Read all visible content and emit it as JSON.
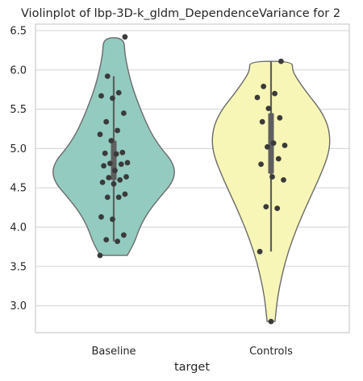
{
  "chart_data": {
    "type": "violin",
    "title": "Violinplot of lbp-3D-k_gldm_DependenceVariance for 2",
    "xlabel": "target",
    "ylabel": "",
    "categories": [
      "Baseline",
      "Controls"
    ],
    "ylim": [
      2.65,
      6.65
    ],
    "yticks": [
      3.0,
      3.5,
      4.0,
      4.5,
      5.0,
      5.5,
      6.0,
      6.5
    ],
    "ytick_labels": [
      "3.0",
      "3.5",
      "4.0",
      "4.5",
      "5.0",
      "5.5",
      "6.0",
      "6.5"
    ],
    "grid": true,
    "series": [
      {
        "colors": {
          "fill": "#93cbc0",
          "edge": "#6b6b6b"
        },
        "min": 3.64,
        "max": 6.41,
        "q1": 4.6,
        "median": 4.87,
        "q3": 5.1,
        "whisker_low": 3.82,
        "whisker_high": 5.92,
        "profile": [
          [
            3.64,
            0.17
          ],
          [
            3.8,
            0.26
          ],
          [
            4.0,
            0.33
          ],
          [
            4.2,
            0.44
          ],
          [
            4.4,
            0.6
          ],
          [
            4.55,
            0.73
          ],
          [
            4.7,
            0.78
          ],
          [
            4.85,
            0.73
          ],
          [
            5.0,
            0.6
          ],
          [
            5.2,
            0.47
          ],
          [
            5.4,
            0.38
          ],
          [
            5.6,
            0.3
          ],
          [
            5.8,
            0.23
          ],
          [
            6.0,
            0.18
          ],
          [
            6.2,
            0.14
          ],
          [
            6.41,
            0.13
          ]
        ],
        "points": [
          3.64,
          3.82,
          3.84,
          3.9,
          4.1,
          4.13,
          4.38,
          4.38,
          4.42,
          4.55,
          4.57,
          4.6,
          4.63,
          4.64,
          4.72,
          4.78,
          4.8,
          4.81,
          4.82,
          4.93,
          4.94,
          4.95,
          5.1,
          5.18,
          5.23,
          5.34,
          5.45,
          5.64,
          5.67,
          5.71,
          5.92,
          6.42
        ]
      },
      {
        "colors": {
          "fill": "#f7f6b6",
          "edge": "#6b6b6b"
        },
        "min": 2.8,
        "max": 6.11,
        "q1": 4.68,
        "median": 5.06,
        "q3": 5.45,
        "whisker_low": 3.69,
        "whisker_high": 6.11,
        "profile": [
          [
            2.8,
            0.05
          ],
          [
            3.1,
            0.08
          ],
          [
            3.4,
            0.14
          ],
          [
            3.7,
            0.22
          ],
          [
            4.0,
            0.33
          ],
          [
            4.3,
            0.46
          ],
          [
            4.6,
            0.6
          ],
          [
            4.9,
            0.72
          ],
          [
            5.1,
            0.75
          ],
          [
            5.3,
            0.72
          ],
          [
            5.5,
            0.62
          ],
          [
            5.7,
            0.46
          ],
          [
            5.9,
            0.32
          ],
          [
            6.0,
            0.27
          ],
          [
            6.11,
            0.27
          ]
        ],
        "points": [
          2.8,
          3.69,
          4.24,
          4.26,
          4.6,
          4.64,
          4.8,
          4.87,
          5.02,
          5.04,
          5.07,
          5.34,
          5.39,
          5.51,
          5.65,
          5.7,
          5.79,
          6.11
        ]
      }
    ]
  }
}
